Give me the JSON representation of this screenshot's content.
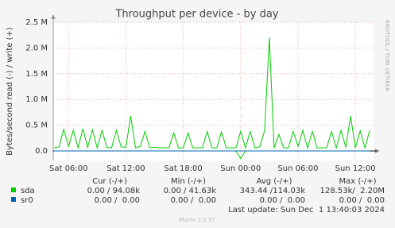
{
  "chart_data": {
    "type": "line",
    "title": "Throughput per device - by day",
    "y_label": "Bytes/second read (-) / write (+)",
    "side_label": "RRDTOOL / TOBI OETIKER",
    "x": [
      4.5,
      5,
      5.5,
      6,
      6.5,
      7,
      7.5,
      8,
      8.5,
      9,
      9.5,
      10,
      10.5,
      11,
      11.5,
      12,
      12.5,
      13,
      13.5,
      14,
      14.5,
      15,
      15.5,
      16,
      16.5,
      17,
      17.5,
      18,
      18.5,
      19,
      19.5,
      20,
      20.5,
      21,
      21.5,
      22,
      22.5,
      23,
      23.5,
      24,
      24.5,
      25,
      25.5,
      26,
      26.5,
      27,
      27.5,
      28,
      28.5,
      29,
      29.5,
      30,
      30.5,
      31,
      31.5,
      32,
      32.5,
      33,
      33.5,
      34,
      34.5,
      35,
      35.5,
      36,
      36.5,
      37,
      37.5
    ],
    "series": [
      {
        "name": "sda",
        "color": "#00cc00",
        "values": [
          60000,
          80000,
          420000,
          90000,
          400000,
          60000,
          430000,
          70000,
          410000,
          60000,
          400000,
          70000,
          60000,
          400000,
          80000,
          70000,
          680000,
          60000,
          90000,
          380000,
          60000,
          70000,
          60000,
          60000,
          60000,
          350000,
          60000,
          60000,
          350000,
          60000,
          60000,
          60000,
          380000,
          60000,
          60000,
          370000,
          60000,
          60000,
          60000,
          380000,
          60000,
          380000,
          60000,
          80000,
          390000,
          2200000,
          60000,
          320000,
          60000,
          60000,
          380000,
          90000,
          400000,
          60000,
          380000,
          60000,
          60000,
          60000,
          380000,
          60000,
          400000,
          70000,
          680000,
          60000,
          390000,
          60000,
          400000
        ],
        "read_values": [
          0,
          0,
          0,
          0,
          0,
          0,
          0,
          0,
          0,
          0,
          0,
          0,
          0,
          0,
          0,
          0,
          0,
          0,
          0,
          0,
          0,
          0,
          0,
          0,
          0,
          0,
          0,
          0,
          0,
          0,
          0,
          0,
          0,
          0,
          0,
          0,
          0,
          0,
          0,
          -150000,
          0,
          0,
          0,
          0,
          0,
          0,
          0,
          0,
          0,
          0,
          0,
          0,
          0,
          0,
          0,
          0,
          0,
          0,
          0,
          0,
          0,
          0,
          0,
          0,
          0,
          0,
          0
        ]
      },
      {
        "name": "sr0",
        "color": "#0066b3",
        "values": [
          0,
          0,
          0,
          0,
          0,
          0,
          0,
          0,
          0,
          0,
          0,
          0,
          0,
          0,
          0,
          0,
          0,
          0,
          0,
          0,
          0,
          0,
          0,
          0,
          0,
          0,
          0,
          0,
          0,
          0,
          0,
          0,
          0,
          0,
          0,
          0,
          0,
          0,
          0,
          0,
          0,
          0,
          0,
          0,
          0,
          0,
          0,
          0,
          0,
          0,
          0,
          0,
          0,
          0,
          0,
          0,
          0,
          0,
          0,
          0,
          0,
          0,
          0,
          0,
          0,
          0,
          0
        ]
      }
    ],
    "xlim": [
      4.4,
      37.9
    ],
    "xticks": [
      {
        "value": 6,
        "label": "Sat 06:00"
      },
      {
        "value": 12,
        "label": "Sat 12:00"
      },
      {
        "value": 18,
        "label": "Sat 18:00"
      },
      {
        "value": 24,
        "label": "Sun 00:00"
      },
      {
        "value": 30,
        "label": "Sun 06:00"
      },
      {
        "value": 36,
        "label": "Sun 12:00"
      }
    ],
    "ylim": [
      -185000,
      2500000
    ],
    "yticks": [
      {
        "value": 0,
        "label": "0.0"
      },
      {
        "value": 500000,
        "label": "0.5 M"
      },
      {
        "value": 1000000,
        "label": "1.0 M"
      },
      {
        "value": 1500000,
        "label": "1.5 M"
      },
      {
        "value": 2000000,
        "label": "2.0 M"
      },
      {
        "value": 2500000,
        "label": "2.5 M"
      }
    ],
    "grid": true
  },
  "legend_table": {
    "headers": [
      "Cur (-/+)",
      "Min (-/+)",
      "Avg (-/+)",
      "Max (-/+)"
    ],
    "rows": [
      [
        "0.00 / 94.08k",
        "0.00 / 41.63k",
        "343.44 /114.03k",
        "128.53k/  2.20M"
      ],
      [
        "0.00 /  0.00",
        "0.00 /  0.00",
        "0.00 /  0.00",
        "0.00 /  0.00"
      ]
    ],
    "last_update": "Last update: Sun Dec  1 13:40:03 2024",
    "version": "Munin 2.0.57"
  }
}
